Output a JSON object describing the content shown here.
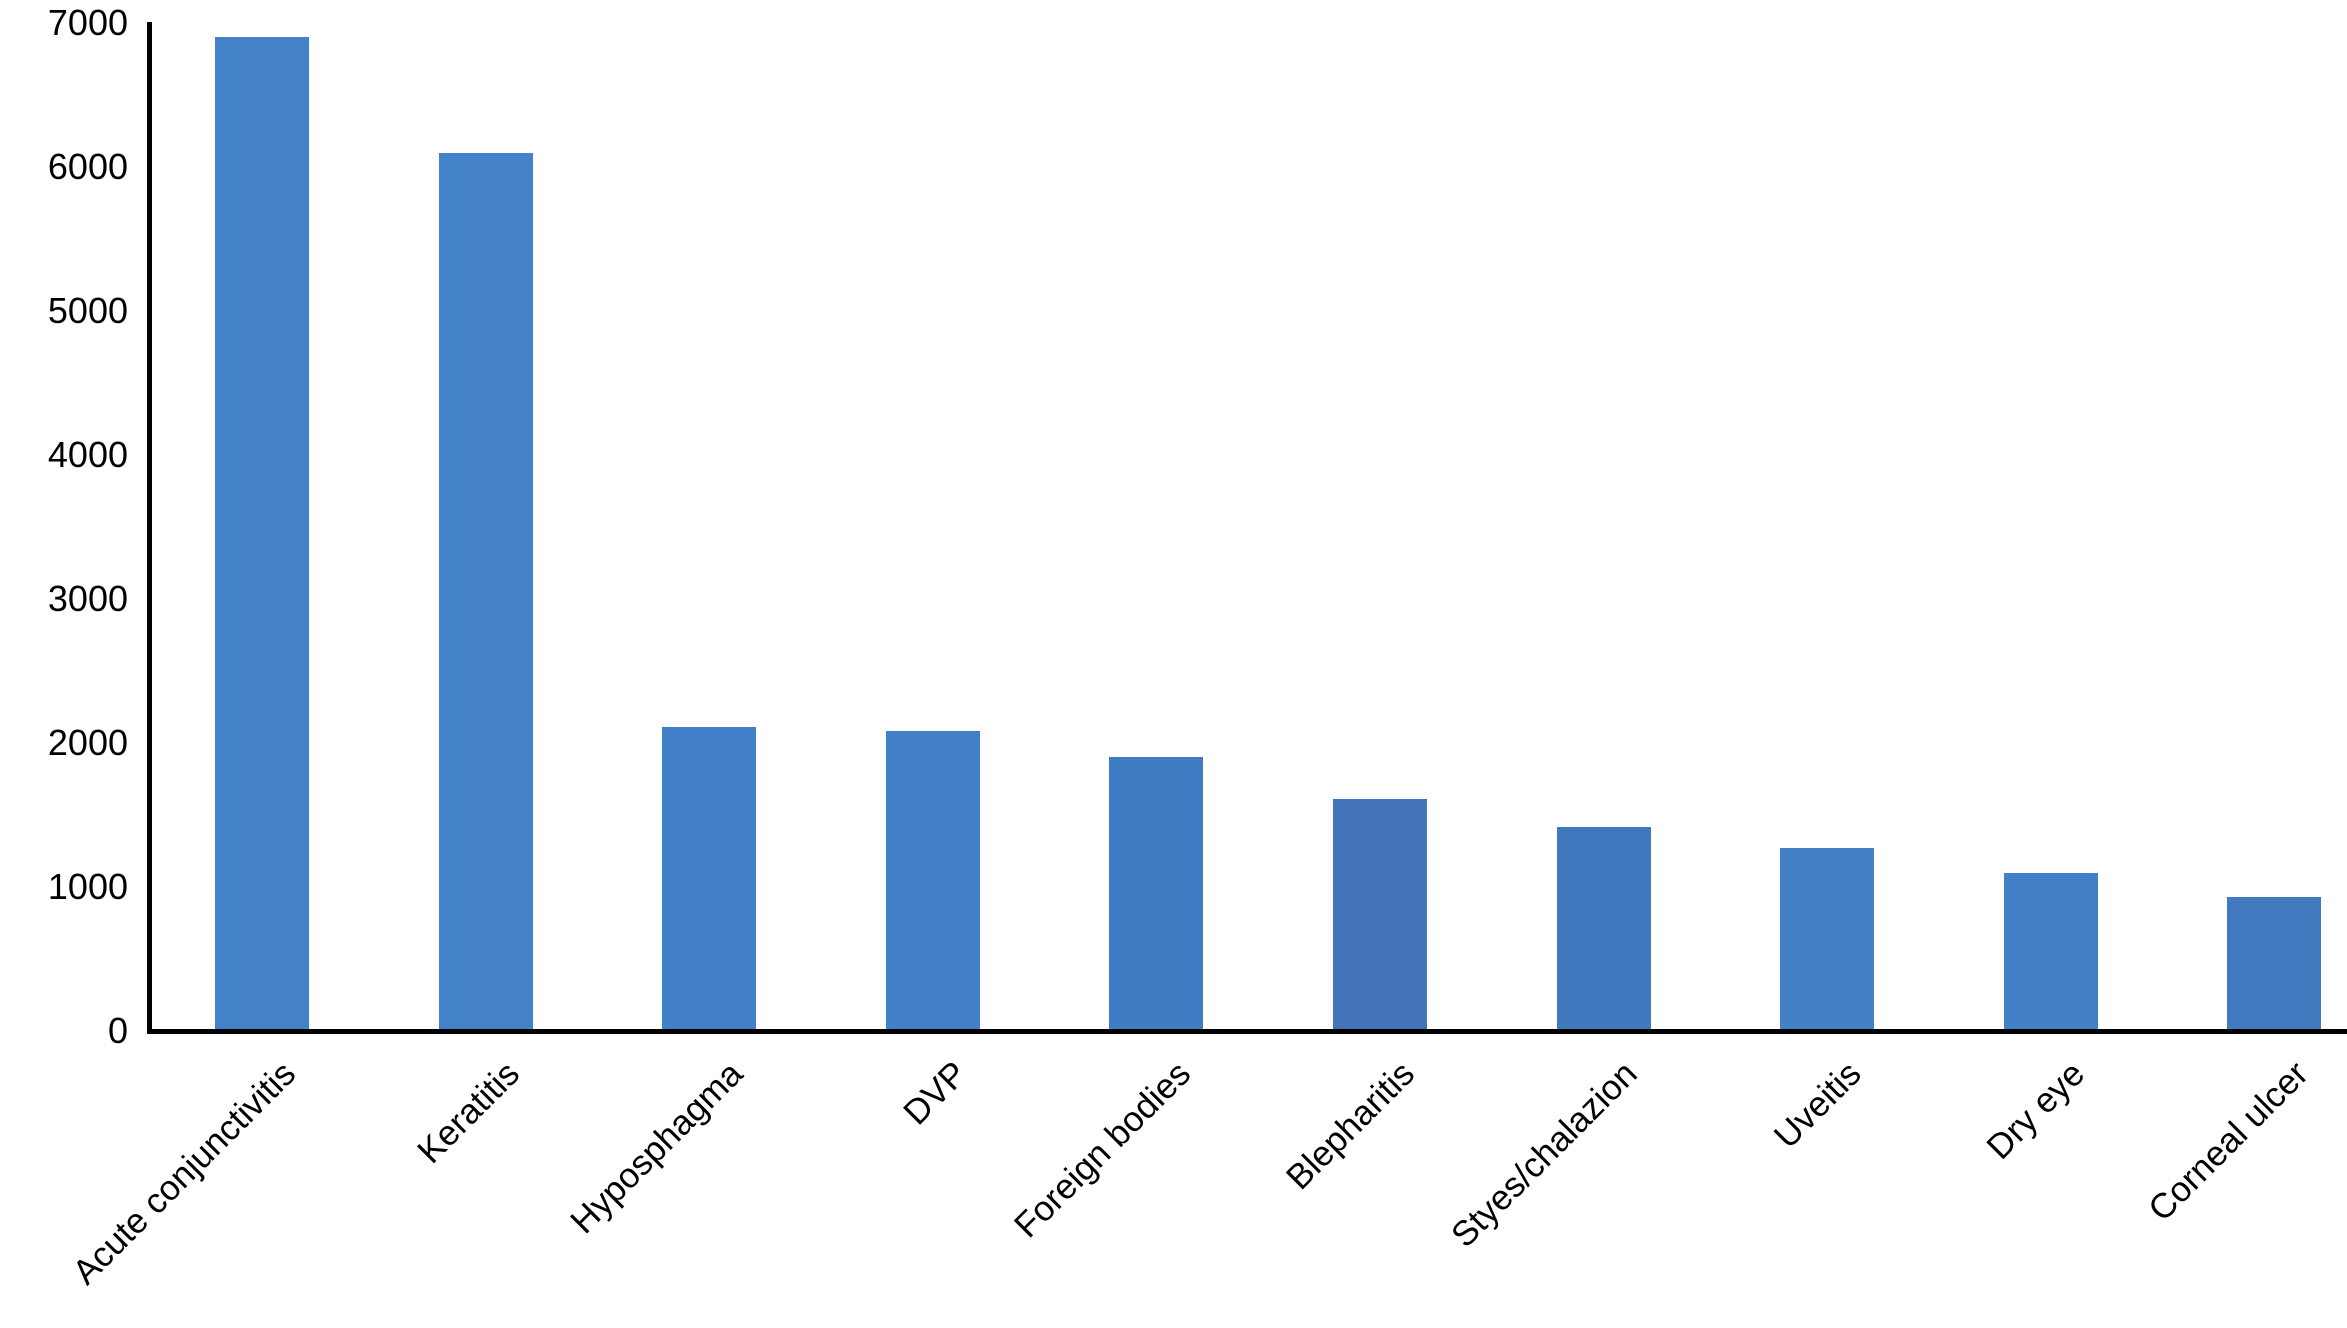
{
  "chart_data": {
    "type": "bar",
    "title": "",
    "xlabel": "",
    "ylabel": "",
    "categories": [
      "Acute conjunctivitis",
      "Keratitis",
      "Hyposphagma",
      "DVP",
      "Foreign bodies",
      "Blepharitis",
      "Styes/chalazion",
      "Uveitis",
      "Dry eye",
      "Corneal ulcer"
    ],
    "values": [
      6900,
      6100,
      2110,
      2080,
      1900,
      1610,
      1420,
      1270,
      1100,
      930
    ],
    "bar_colors": [
      "#4382C9",
      "#4382C9",
      "#4180C8",
      "#4180C8",
      "#3E7CC4",
      "#4474B8",
      "#4179BF",
      "#4380C6",
      "#4180C6",
      "#427ABF"
    ],
    "ylim": [
      0,
      7000
    ],
    "yticks": [
      0,
      1000,
      2000,
      3000,
      4000,
      5000,
      6000,
      7000
    ],
    "x_tick_rotation_deg": 45,
    "grid": false,
    "legend_position": "none",
    "axis_color": "#000000",
    "text_color": "#000000",
    "background_color": "#ffffff"
  }
}
